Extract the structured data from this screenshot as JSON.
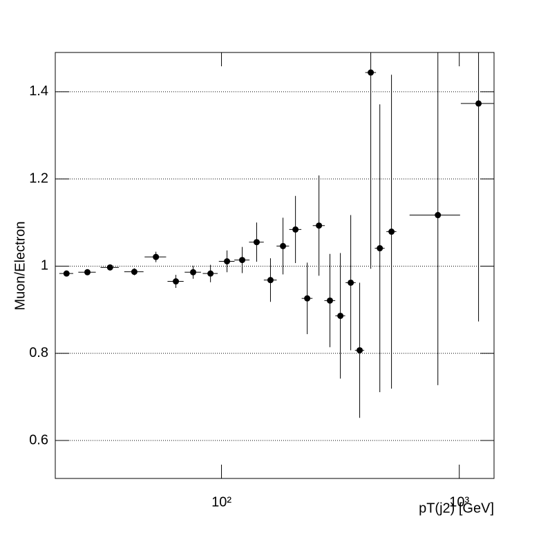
{
  "chart_data": {
    "type": "scatter",
    "xlabel": "pT(j2) [GeV]",
    "ylabel": "Muon/Electron",
    "x": [
      22.3,
      27.3,
      34.0,
      43.0,
      53.0,
      64.3,
      76.0,
      89.9,
      105.5,
      122.2,
      140.6,
      160.7,
      181.4,
      204.7,
      229.4,
      257.0,
      285.8,
      316.2,
      349.6,
      381.2,
      424.4,
      463.3,
      518.7,
      812.8,
      1205
    ],
    "xerr": [
      1.5,
      2.3,
      3,
      4,
      5.5,
      5,
      6,
      6.5,
      8,
      9,
      10,
      10,
      11,
      12,
      12,
      15,
      15,
      15,
      17,
      17,
      22,
      22,
      25,
      195,
      190
    ],
    "values": [
      0.983,
      0.986,
      0.997,
      0.987,
      1.021,
      0.965,
      0.986,
      0.983,
      1.011,
      1.014,
      1.055,
      0.968,
      1.046,
      1.084,
      0.926,
      1.093,
      0.921,
      0.886,
      0.962,
      0.807,
      1.444,
      1.041,
      1.079,
      1.117,
      1.373
    ],
    "yerr": [
      0.005,
      0.006,
      0.006,
      0.008,
      0.012,
      0.015,
      0.015,
      0.02,
      0.025,
      0.03,
      0.045,
      0.05,
      0.065,
      0.077,
      0.082,
      0.115,
      0.107,
      0.144,
      0.155,
      0.155,
      0.45,
      0.33,
      0.36,
      0.39,
      0.5
    ],
    "color": "#000000",
    "xscale": "log",
    "xlim": [
      20,
      1400
    ],
    "ylim": [
      0.513,
      1.49
    ],
    "xticks": [
      {
        "value": 100,
        "label": "10²"
      },
      {
        "value": 1000,
        "label": "10³"
      }
    ],
    "yticks": [
      0.6,
      0.8,
      1,
      1.2,
      1.4
    ],
    "grid": true
  }
}
